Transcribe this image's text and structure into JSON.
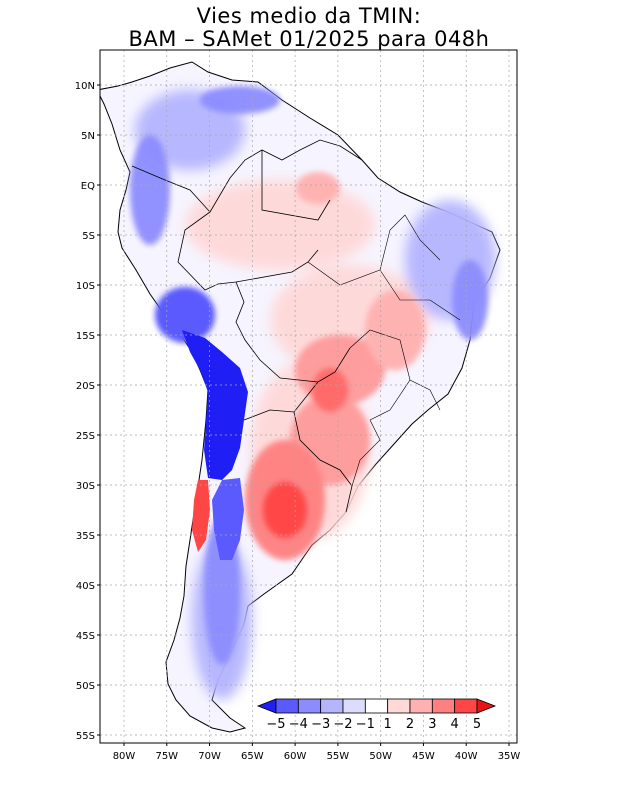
{
  "title": {
    "line1": "Vies medio da TMIN:",
    "line2": "BAM – SAMet 01/2025  para 048h"
  },
  "latitude_labels": [
    "10N",
    "5N",
    "EQ",
    "5S",
    "10S",
    "15S",
    "20S",
    "25S",
    "30S",
    "35S",
    "40S",
    "45S",
    "50S",
    "55S"
  ],
  "latitude_values": [
    10,
    5,
    0,
    -5,
    -10,
    -15,
    -20,
    -25,
    -30,
    -35,
    -40,
    -45,
    -50,
    -55
  ],
  "longitude_labels": [
    "80W",
    "75W",
    "70W",
    "65W",
    "60W",
    "55W",
    "50W",
    "45W",
    "40W",
    "35W"
  ],
  "longitude_values": [
    -80,
    -75,
    -70,
    -65,
    -60,
    -55,
    -50,
    -45,
    -40,
    -35
  ],
  "colorbar": {
    "labels": [
      "−5",
      "−4",
      "−3",
      "−2",
      "−1",
      "1",
      "2",
      "3",
      "4",
      "5"
    ],
    "colors": [
      "#1f1ff5",
      "#5a5aff",
      "#8c8cff",
      "#b4b4ff",
      "#dcdcff",
      "#ffffff",
      "#ffd8d8",
      "#ffb0b0",
      "#ff8080",
      "#ff4646",
      "#e61414"
    ]
  },
  "colors": {
    "land_neutral": "#f4f4ff",
    "warm_light": "#ffd8d8",
    "warm_mid": "#ffb0b0",
    "warm_strong": "#ff6a6a",
    "cold_light": "#dcdcff",
    "cold_mid": "#8c8cff",
    "cold_strong": "#1f1ff5"
  }
}
